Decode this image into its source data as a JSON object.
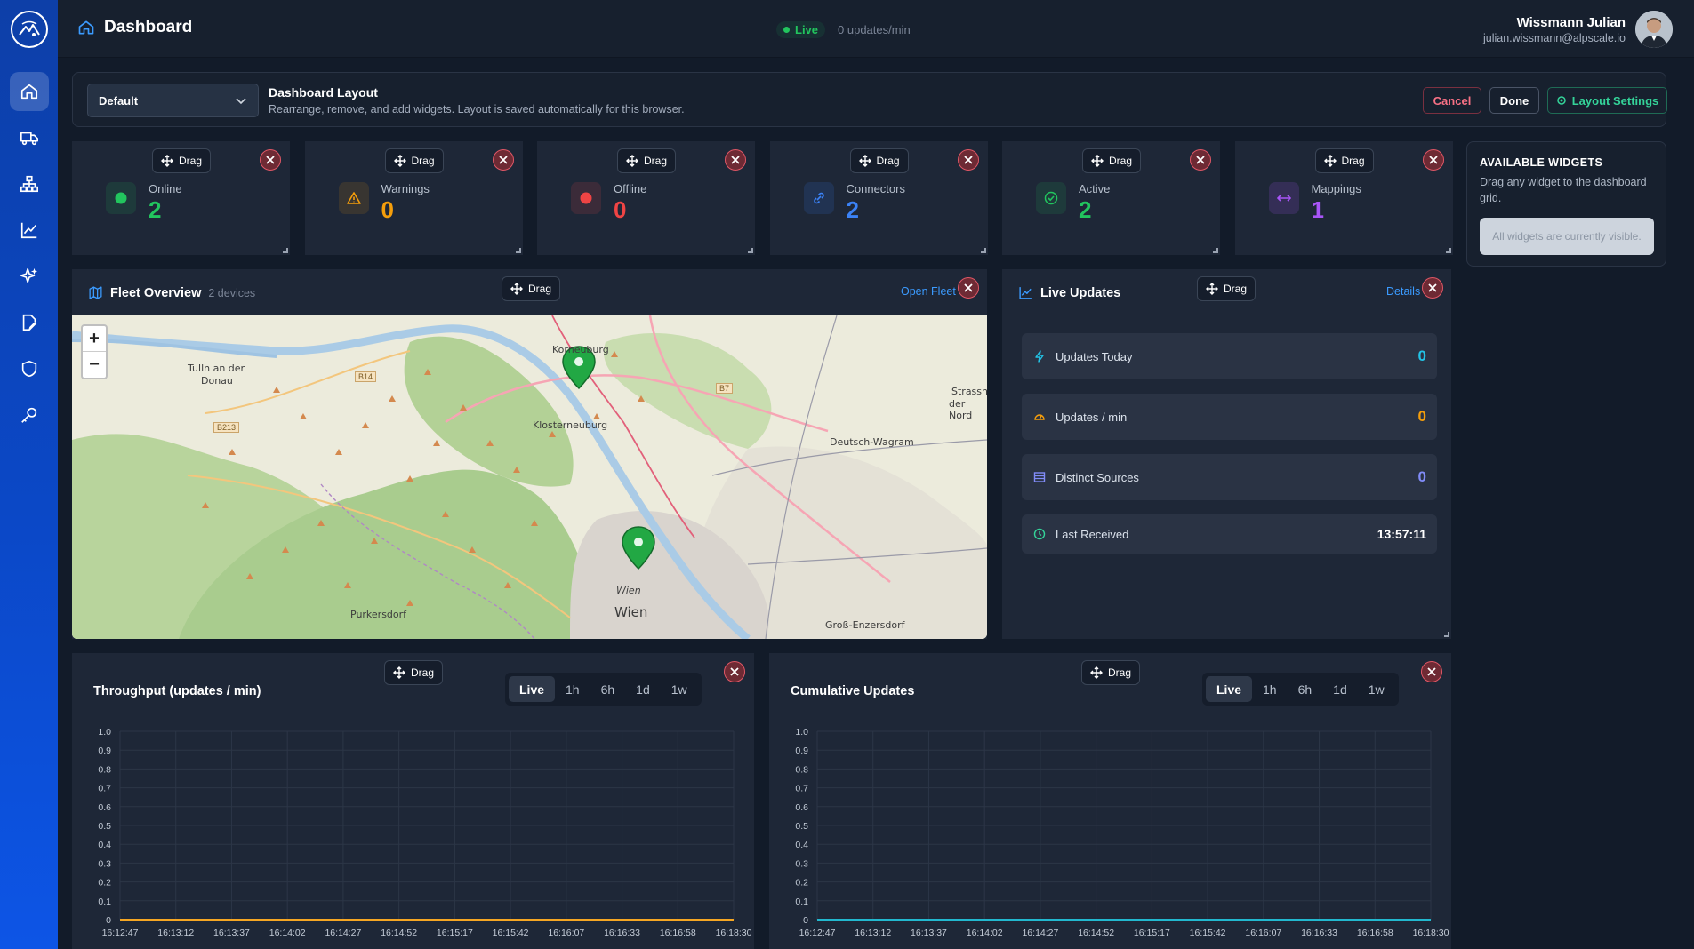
{
  "header": {
    "title": "Dashboard",
    "live_label": "Live",
    "rate": "0 updates/min",
    "user_name": "Wissmann Julian",
    "user_email": "julian.wissmann@alpscale.io"
  },
  "sidebar": {
    "items": [
      "home-icon",
      "truck-icon",
      "network-icon",
      "chart-icon",
      "sparkle-icon",
      "file-edit-icon",
      "shield-icon",
      "key-icon"
    ]
  },
  "layout_bar": {
    "select_value": "Default",
    "title": "Dashboard Layout",
    "subtitle": "Rearrange, remove, and add widgets. Layout is saved automatically for this browser.",
    "cancel": "Cancel",
    "done": "Done",
    "settings": "Layout Settings"
  },
  "drag_label": "Drag",
  "stats": [
    {
      "label": "Online",
      "value": "2",
      "color": "#22c55e"
    },
    {
      "label": "Warnings",
      "value": "0",
      "color": "#f59e0b"
    },
    {
      "label": "Offline",
      "value": "0",
      "color": "#ef4444"
    },
    {
      "label": "Connectors",
      "value": "2",
      "color": "#3b82f6"
    },
    {
      "label": "Active",
      "value": "2",
      "color": "#22c55e"
    },
    {
      "label": "Mappings",
      "value": "1",
      "color": "#a855f7"
    }
  ],
  "fleet": {
    "title": "Fleet Overview",
    "subtitle": "2 devices",
    "link": "Open Fleet",
    "zoom_in": "+",
    "zoom_out": "−",
    "places": [
      "Korneuburg",
      "Tulln an der",
      "Donau",
      "Klosterneuburg",
      "Deutsch-Wagram",
      "Strassh",
      "der Nord",
      "Wien",
      "Wien",
      "Purkersdorf",
      "Groß-Enzersdorf"
    ],
    "roads": [
      "B14",
      "B213",
      "B7"
    ]
  },
  "live_updates": {
    "title": "Live Updates",
    "link": "Details",
    "rows": [
      {
        "label": "Updates Today",
        "value": "0",
        "color": "#22c3e6"
      },
      {
        "label": "Updates / min",
        "value": "0",
        "color": "#f59e0b"
      },
      {
        "label": "Distinct Sources",
        "value": "0",
        "color": "#818cf8"
      },
      {
        "label": "Last Received",
        "value": "13:57:11",
        "color": "#ffffff"
      }
    ]
  },
  "available": {
    "title": "AVAILABLE WIDGETS",
    "desc": "Drag any widget to the dashboard grid.",
    "empty": "All widgets are currently visible."
  },
  "ranges": [
    "Live",
    "1h",
    "6h",
    "1d",
    "1w"
  ],
  "chart_data": [
    {
      "type": "line",
      "title": "Throughput (updates / min)",
      "x": [
        "16:12:47",
        "16:13:12",
        "16:13:37",
        "16:14:02",
        "16:14:27",
        "16:14:52",
        "16:15:17",
        "16:15:42",
        "16:16:07",
        "16:16:33",
        "16:16:58",
        "16:18:30"
      ],
      "series": [
        {
          "values": [
            0,
            0,
            0,
            0,
            0,
            0,
            0,
            0,
            0,
            0,
            0,
            0
          ],
          "color": "#f5a623"
        }
      ],
      "yticks": [
        "1.0",
        "0.9",
        "0.8",
        "0.7",
        "0.6",
        "0.5",
        "0.4",
        "0.3",
        "0.2",
        "0.1",
        "0"
      ],
      "ylim": [
        0,
        1
      ],
      "grid": true
    },
    {
      "type": "line",
      "title": "Cumulative Updates",
      "x": [
        "16:12:47",
        "16:13:12",
        "16:13:37",
        "16:14:02",
        "16:14:27",
        "16:14:52",
        "16:15:17",
        "16:15:42",
        "16:16:07",
        "16:16:33",
        "16:16:58",
        "16:18:30"
      ],
      "series": [
        {
          "values": [
            0,
            0,
            0,
            0,
            0,
            0,
            0,
            0,
            0,
            0,
            0,
            0
          ],
          "color": "#22b8cf"
        }
      ],
      "yticks": [
        "1.0",
        "0.9",
        "0.8",
        "0.7",
        "0.6",
        "0.5",
        "0.4",
        "0.3",
        "0.2",
        "0.1",
        "0"
      ],
      "ylim": [
        0,
        1
      ],
      "grid": true
    }
  ]
}
